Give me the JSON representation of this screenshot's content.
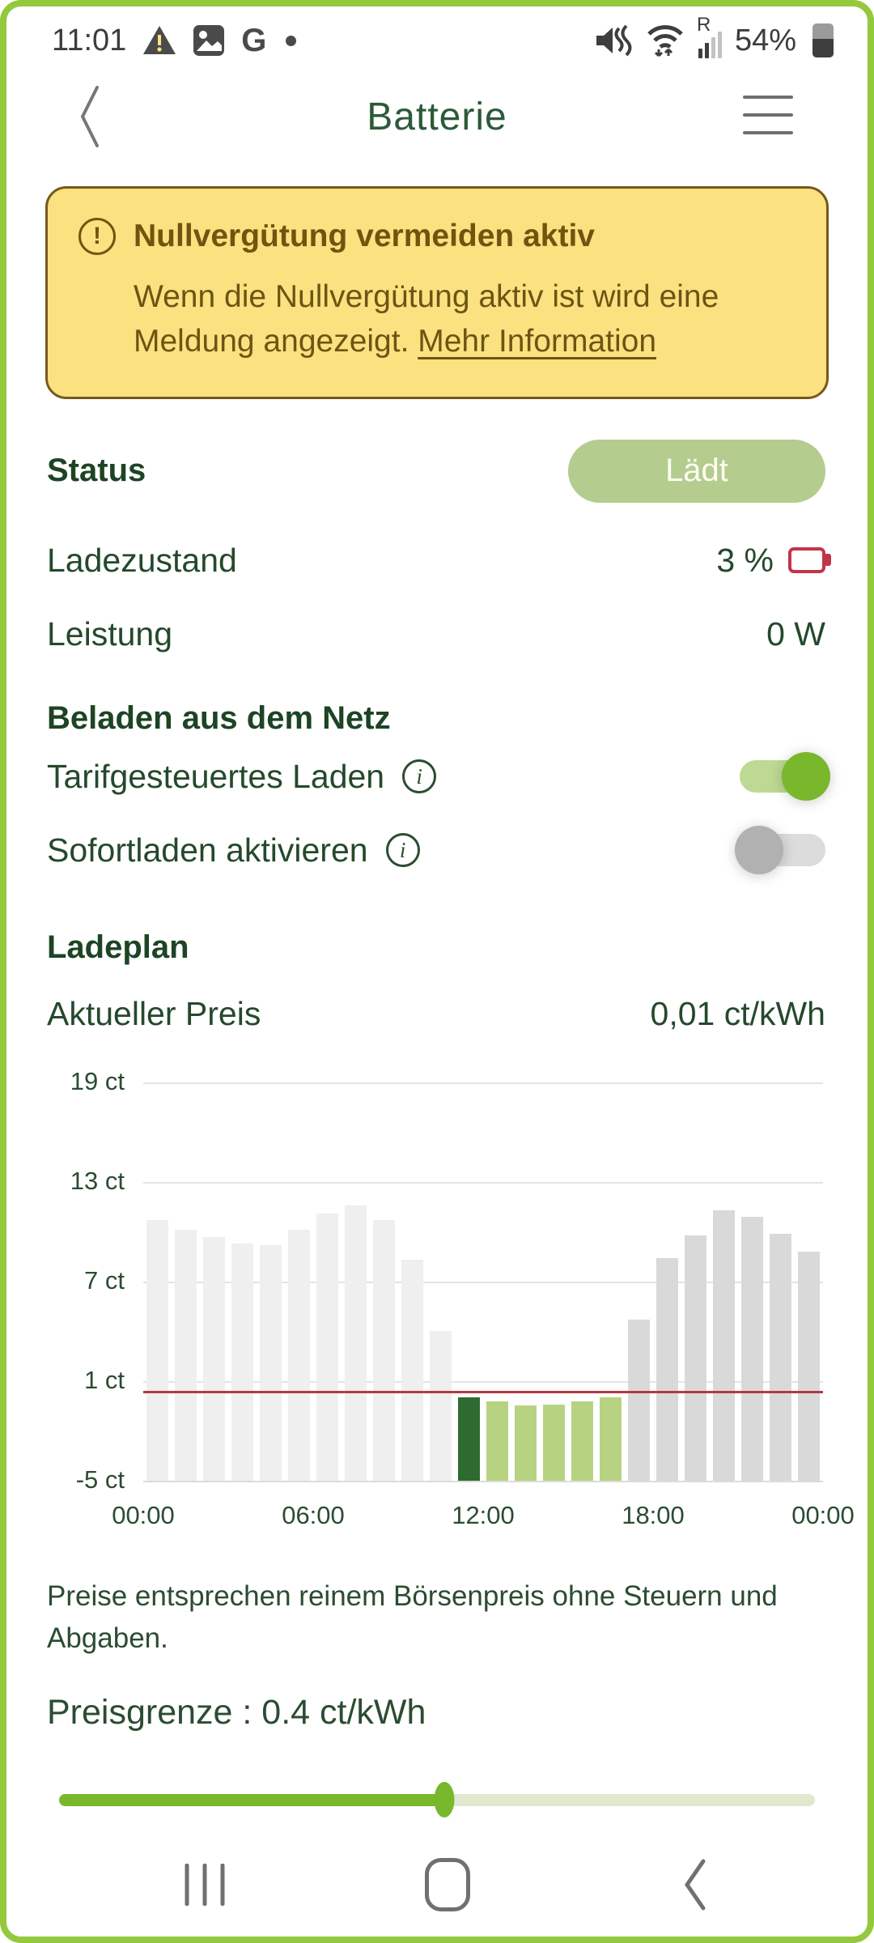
{
  "status_bar": {
    "time": "11:01",
    "battery_percent": "54%",
    "signal_label": "R"
  },
  "header": {
    "title": "Batterie"
  },
  "alert": {
    "title": "Nullvergütung vermeiden aktiv",
    "body": "Wenn die Nullvergütung aktiv ist wird eine Meldung angezeigt. ",
    "link": "Mehr Information"
  },
  "status_row": {
    "label": "Status",
    "value": "Lädt"
  },
  "soc_row": {
    "label": "Ladezustand",
    "value": "3 %"
  },
  "power_row": {
    "label": "Leistung",
    "value": "0 W"
  },
  "grid_section": {
    "title": "Beladen aus dem Netz",
    "toggle1": {
      "label": "Tarifgesteuertes Laden",
      "state": "on"
    },
    "toggle2": {
      "label": "Sofortladen aktivieren",
      "state": "off"
    }
  },
  "ladeplan": {
    "title": "Ladeplan",
    "price_label": "Aktueller Preis",
    "price_value": "0,01 ct/kWh",
    "disclaimer": "Preise entsprechen reinem Börsenpreis ohne Steuern und Abgaben.",
    "limit_label": "Preisgrenze : 0.4 ct/kWh",
    "slider_percent": 51
  },
  "chart_data": {
    "type": "bar",
    "title": "Ladeplan Strompreis je Stunde",
    "unit": "ct/kWh",
    "categories": [
      "00:00",
      "01:00",
      "02:00",
      "03:00",
      "04:00",
      "05:00",
      "06:00",
      "07:00",
      "08:00",
      "09:00",
      "10:00",
      "11:00",
      "12:00",
      "13:00",
      "14:00",
      "15:00",
      "16:00",
      "17:00",
      "18:00",
      "19:00",
      "20:00",
      "21:00",
      "22:00",
      "23:00"
    ],
    "values": [
      10.7,
      10.1,
      9.7,
      9.3,
      9.2,
      10.1,
      11.1,
      11.6,
      10.7,
      8.3,
      4.0,
      0.01,
      -0.2,
      -0.45,
      -0.4,
      -0.2,
      0.0,
      4.7,
      8.4,
      9.8,
      11.3,
      10.9,
      9.9,
      8.8
    ],
    "bar_roles": [
      "past",
      "past",
      "past",
      "past",
      "past",
      "past",
      "past",
      "past",
      "past",
      "past",
      "past",
      "current",
      "window",
      "window",
      "window",
      "window",
      "window",
      "future",
      "future",
      "future",
      "future",
      "future",
      "future",
      "future"
    ],
    "role_colors": {
      "past": "#efefef",
      "current": "#2d6b31",
      "window": "#b7d381",
      "future": "#d9d9d9"
    },
    "yticks": [
      {
        "label": "19 ct",
        "value": 19
      },
      {
        "label": "13 ct",
        "value": 13
      },
      {
        "label": "7 ct",
        "value": 7
      },
      {
        "label": "1 ct",
        "value": 1
      },
      {
        "label": "-5 ct",
        "value": -5
      }
    ],
    "ylim": [
      -5,
      20.5
    ],
    "xticks": [
      {
        "label": "00:00",
        "hour": 0
      },
      {
        "label": "06:00",
        "hour": 6
      },
      {
        "label": "12:00",
        "hour": 12
      },
      {
        "label": "18:00",
        "hour": 18
      },
      {
        "label": "00:00",
        "hour": 24
      }
    ],
    "price_limit": 0.4,
    "price_limit_color": "#b43a41",
    "grid": true,
    "legend": false
  },
  "colors": {
    "accent_green": "#79b72c",
    "screen_border_green": "#94c83d",
    "pill_green": "#b4cc8e",
    "alert_bg": "#fce181",
    "alert_border": "#76591c",
    "alert_text": "#74530f",
    "battery_red": "#c23549",
    "dark_green_text": "#24492b"
  }
}
